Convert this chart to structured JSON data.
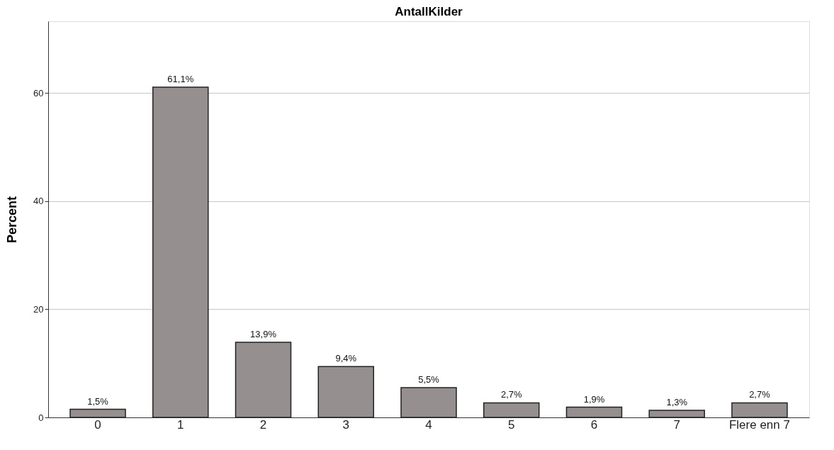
{
  "chart_data": {
    "type": "bar",
    "title": "AntallKilder",
    "ylabel": "Percent",
    "categories": [
      "0",
      "1",
      "2",
      "3",
      "4",
      "5",
      "6",
      "7",
      "Flere enn 7"
    ],
    "values": [
      1.5,
      61.1,
      13.9,
      9.4,
      5.5,
      2.7,
      1.9,
      1.3,
      2.7
    ],
    "value_labels": [
      "1,5%",
      "61,1%",
      "13,9%",
      "9,4%",
      "5,5%",
      "2,7%",
      "1,9%",
      "1,3%",
      "2,7%"
    ],
    "color": "#958f8f",
    "ylim": [
      0,
      73.3
    ],
    "yticks": [
      0,
      20,
      40,
      60
    ],
    "grid": "y"
  }
}
